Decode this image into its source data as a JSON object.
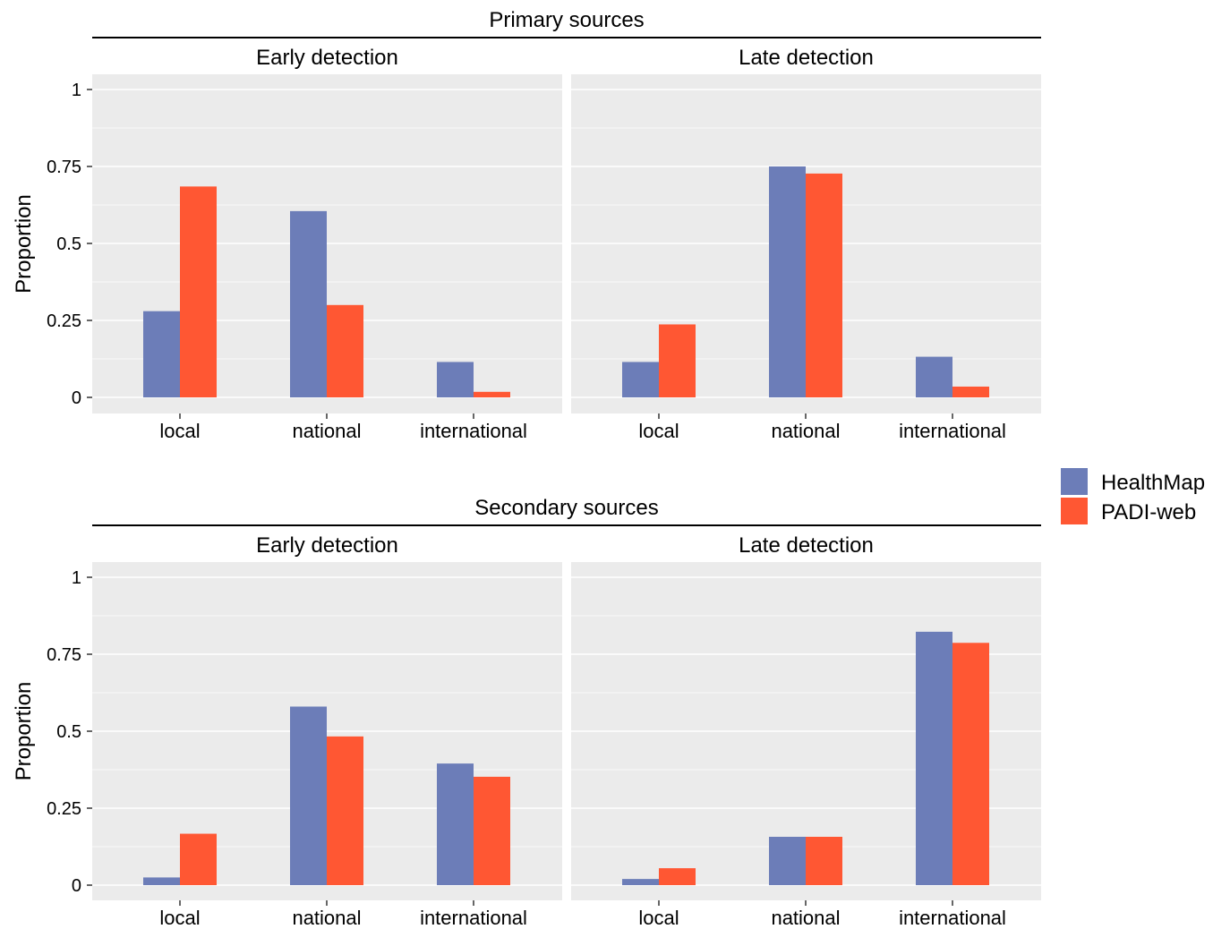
{
  "chart_data": {
    "type": "bar",
    "ylabel": "Proportion",
    "ylim": [
      0,
      1
    ],
    "yticks": [
      0,
      0.25,
      0.5,
      0.75,
      1
    ],
    "ytick_labels": [
      "0",
      "0.25",
      "0.5",
      "0.75",
      "1"
    ],
    "categories": [
      "local",
      "national",
      "international"
    ],
    "legend": {
      "position": "right",
      "entries": [
        {
          "name": "HealthMap",
          "color": "#6C7DB8"
        },
        {
          "name": "PADI-web",
          "color": "#FF5733"
        }
      ]
    },
    "colors": {
      "HealthMap": "#6C7DB8",
      "PADI-web": "#FF5733",
      "panel_background": "#EBEBEB",
      "gridline": "#FFFFFF"
    },
    "groups": [
      {
        "title": "Primary sources",
        "panels": [
          {
            "title": "Early detection",
            "series": [
              {
                "name": "HealthMap",
                "values": [
                  0.28,
                  0.605,
                  0.115
                ]
              },
              {
                "name": "PADI-web",
                "values": [
                  0.685,
                  0.3,
                  0.018
                ]
              }
            ]
          },
          {
            "title": "Late detection",
            "series": [
              {
                "name": "HealthMap",
                "values": [
                  0.115,
                  0.75,
                  0.132
                ]
              },
              {
                "name": "PADI-web",
                "values": [
                  0.237,
                  0.727,
                  0.035
                ]
              }
            ]
          }
        ]
      },
      {
        "title": "Secondary sources",
        "panels": [
          {
            "title": "Early detection",
            "series": [
              {
                "name": "HealthMap",
                "values": [
                  0.025,
                  0.58,
                  0.395
                ]
              },
              {
                "name": "PADI-web",
                "values": [
                  0.167,
                  0.483,
                  0.352
                ]
              }
            ]
          },
          {
            "title": "Late detection",
            "series": [
              {
                "name": "HealthMap",
                "values": [
                  0.02,
                  0.157,
                  0.823
                ]
              },
              {
                "name": "PADI-web",
                "values": [
                  0.055,
                  0.157,
                  0.787
                ]
              }
            ]
          }
        ]
      }
    ]
  }
}
